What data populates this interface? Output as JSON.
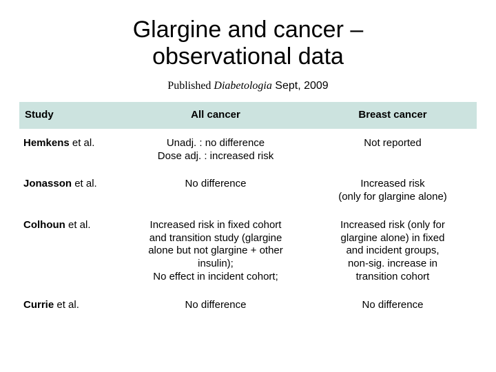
{
  "title_line1": "Glargine and cancer –",
  "title_line2": "observational data",
  "subtitle": {
    "published": "Published ",
    "journal": "Diabetologia",
    "date": "  Sept, 2009"
  },
  "header_bg": "#cce3df",
  "columns": {
    "study": "Study",
    "allcancer": "All cancer",
    "breast": "Breast cancer"
  },
  "rows": [
    {
      "author": "Hemkens",
      "suffix": " et al.",
      "allcancer_l1": "Unadj. : no difference",
      "allcancer_l2": "Dose adj. : increased risk",
      "breast": "Not reported"
    },
    {
      "author": "Jonasson",
      "suffix": " et al.",
      "allcancer": "No difference",
      "breast_l1": "Increased risk",
      "breast_l2": "(only for glargine alone)"
    },
    {
      "author": "Colhoun",
      "suffix": " et al.",
      "allcancer_l1": "Increased risk in fixed cohort",
      "allcancer_l2": "and transition study (glargine",
      "allcancer_l3": "alone but not glargine + other",
      "allcancer_l4": "insulin);",
      "allcancer_l5": "No effect in incident cohort;",
      "breast_l1": "Increased risk (only for",
      "breast_l2": "glargine alone) in fixed",
      "breast_l3": "and incident groups,",
      "breast_l4": "non-sig. increase in",
      "breast_l5": "transition cohort"
    },
    {
      "author": "Currie",
      "suffix": " et al.",
      "allcancer": "No difference",
      "breast": "No difference"
    }
  ]
}
